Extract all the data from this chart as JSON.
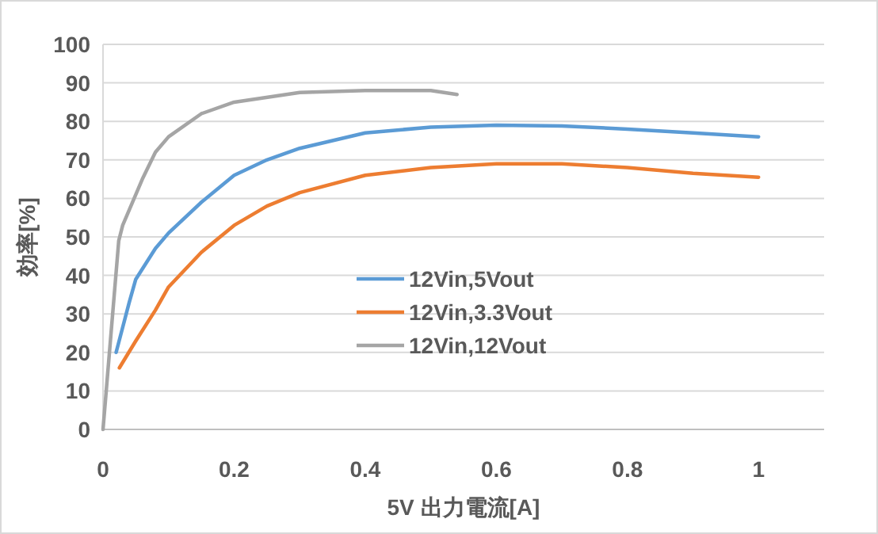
{
  "chart_data": {
    "type": "line",
    "xlabel": "5V 出力電流[A]",
    "ylabel": "効率[%]",
    "xlim": [
      0,
      1.1
    ],
    "xticks": [
      0,
      0.2,
      0.4,
      0.6,
      0.8,
      1
    ],
    "ylim": [
      0,
      100
    ],
    "yticks": [
      0,
      10,
      20,
      30,
      40,
      50,
      60,
      70,
      80,
      90,
      100
    ],
    "grid": "y",
    "legend": "center",
    "marker": "none",
    "line_style": "solid",
    "series": [
      {
        "name": "12Vin,5Vout",
        "color": "#5b9bd5",
        "x": [
          0.02,
          0.04,
          0.05,
          0.08,
          0.1,
          0.15,
          0.2,
          0.25,
          0.3,
          0.4,
          0.5,
          0.6,
          0.7,
          0.8,
          0.9,
          1.0
        ],
        "values": [
          20,
          33,
          39,
          47,
          51,
          59,
          66,
          70,
          73,
          77,
          78.5,
          79,
          78.8,
          78,
          77,
          76
        ]
      },
      {
        "name": "12Vin,3.3Vout",
        "color": "#ed7d31",
        "x": [
          0.025,
          0.05,
          0.08,
          0.1,
          0.15,
          0.2,
          0.25,
          0.3,
          0.4,
          0.5,
          0.6,
          0.7,
          0.8,
          0.9,
          1.0
        ],
        "values": [
          16,
          23,
          31,
          37,
          46,
          53,
          58,
          61.5,
          66,
          68,
          69,
          69,
          68,
          66.5,
          65.5
        ]
      },
      {
        "name": "12Vin,12Vout",
        "color": "#a5a5a5",
        "x": [
          0,
          0.024,
          0.03,
          0.06,
          0.08,
          0.1,
          0.15,
          0.2,
          0.3,
          0.4,
          0.5,
          0.54
        ],
        "values": [
          0,
          49,
          53,
          65,
          72,
          76,
          82,
          85,
          87.5,
          88,
          88,
          87
        ]
      }
    ]
  }
}
